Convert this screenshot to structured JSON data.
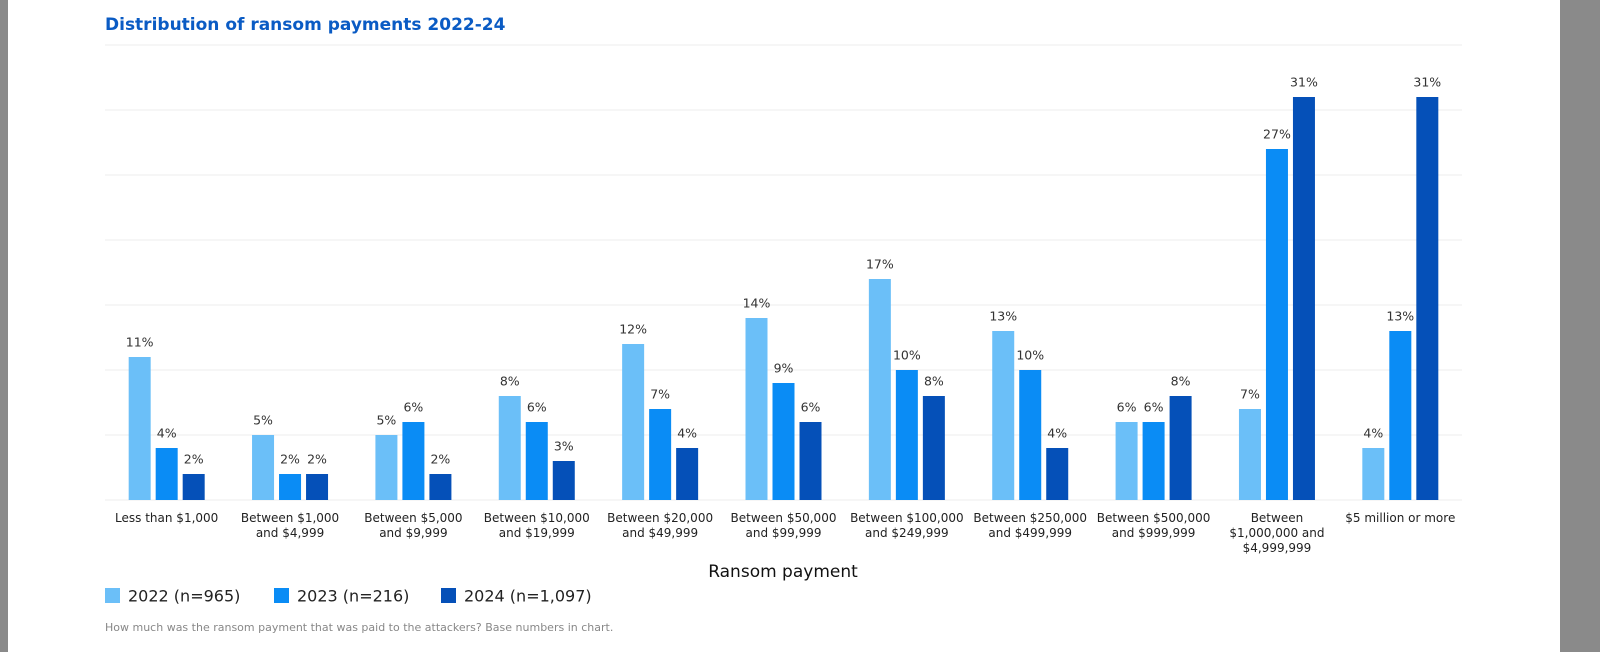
{
  "chart_data": {
    "type": "bar",
    "title": "Distribution of ransom payments 2022-24",
    "x_label": "Ransom payment",
    "footnote": "How much was the ransom payment that was paid to the attackers? Base numbers in chart.",
    "categories": [
      "Less than $1,000",
      "Between $1,000 and $4,999",
      "Between $5,000 and $9,999",
      "Between $10,000 and $19,999",
      "Between $20,000 and $49,999",
      "Between $50,000 and $99,999",
      "Between $100,000 and $249,999",
      "Between $250,000 and $499,999",
      "Between $500,000 and $999,999",
      "Between $1,000,000 and $4,999,999",
      "$5 million or more"
    ],
    "series": [
      {
        "name": "2022 (n=965)",
        "color": "#6bbff8",
        "values": [
          11,
          5,
          5,
          8,
          12,
          14,
          17,
          13,
          6,
          7,
          4
        ],
        "value_labels": [
          "11%",
          "5%",
          "5%",
          "8%",
          "12%",
          "14%",
          "17%",
          "13%",
          "6%",
          "7%",
          "4%"
        ]
      },
      {
        "name": "2023 (n=216)",
        "color": "#0a8cf5",
        "values": [
          4,
          2,
          6,
          6,
          7,
          9,
          10,
          10,
          6,
          27,
          13
        ],
        "value_labels": [
          "4%",
          "2%",
          "6%",
          "6%",
          "7%",
          "9%",
          "10%",
          "10%",
          "6%",
          "27%",
          "13%"
        ]
      },
      {
        "name": "2024 (n=1,097)",
        "color": "#0550b8",
        "values": [
          2,
          2,
          2,
          3,
          4,
          6,
          8,
          4,
          8,
          31,
          31
        ],
        "value_labels": [
          "2%",
          "2%",
          "2%",
          "3%",
          "4%",
          "6%",
          "8%",
          "4%",
          "8%",
          "31%",
          "31%"
        ]
      }
    ],
    "ylim": [
      0,
      35
    ],
    "yticks": [
      0,
      5,
      10,
      15,
      20,
      25,
      30,
      35
    ],
    "grid": true
  }
}
